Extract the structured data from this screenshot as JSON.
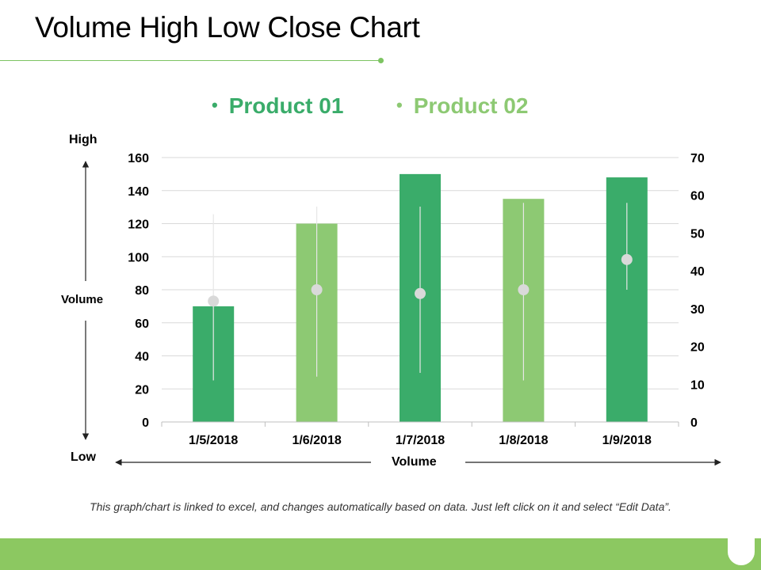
{
  "page": {
    "title": "Volume High Low Close Chart",
    "footer_note": "This graph/chart is linked to excel, and changes automatically based on data. Just left click on it and select “Edit Data”."
  },
  "labels": {
    "high": "High",
    "volume_left": "Volume",
    "low": "Low",
    "volume_bottom": "Volume"
  },
  "colors": {
    "product_01": "#3aac6a",
    "product_02": "#8dc973",
    "close_marker": "#d9d9d9",
    "grid": "#d9d9d9",
    "accent": "#8cc861"
  },
  "chart_data": {
    "type": "bar",
    "title": "Volume High Low Close Chart",
    "categories": [
      "1/5/2018",
      "1/6/2018",
      "1/7/2018",
      "1/8/2018",
      "1/9/2018"
    ],
    "legend": [
      "Product 01",
      "Product 02"
    ],
    "volume": {
      "axis": "left",
      "ylim": [
        0,
        160
      ],
      "yticks": [
        0,
        20,
        40,
        60,
        80,
        100,
        120,
        140,
        160
      ],
      "values": [
        70,
        120,
        150,
        135,
        148
      ],
      "series_by_category": [
        "Product 01",
        "Product 02",
        "Product 01",
        "Product 02",
        "Product 01"
      ]
    },
    "price": {
      "axis": "right",
      "ylim": [
        0,
        70
      ],
      "yticks": [
        0,
        10,
        20,
        30,
        40,
        50,
        60,
        70
      ],
      "high": [
        55,
        57,
        57,
        58,
        58
      ],
      "low": [
        11,
        12,
        13,
        11,
        35
      ],
      "close": [
        32,
        35,
        34,
        35,
        43
      ]
    },
    "xlabel": "Volume",
    "ylabel": "Volume",
    "grid": true,
    "legend_position": "top"
  }
}
